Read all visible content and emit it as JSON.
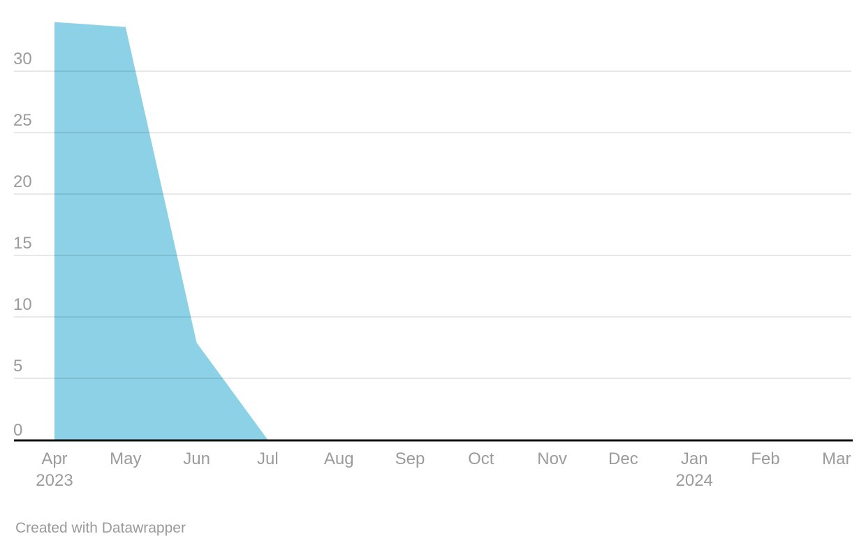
{
  "chart_data": {
    "type": "area",
    "categories": [
      "Apr",
      "May",
      "Jun",
      "Jul",
      "Aug",
      "Sep",
      "Oct",
      "Nov",
      "Dec",
      "Jan",
      "Feb",
      "Mar"
    ],
    "year_labels": [
      {
        "index": 0,
        "label": "2023"
      },
      {
        "index": 9,
        "label": "2024"
      }
    ],
    "values": [
      34,
      33.6,
      7.9,
      0,
      0,
      0,
      0,
      0,
      0,
      0,
      0,
      0
    ],
    "y_ticks": [
      0,
      5,
      10,
      15,
      20,
      25,
      30
    ],
    "ylim": [
      0,
      34
    ],
    "xlabel": "",
    "ylabel": "",
    "grid": "horizontal",
    "legend": "none",
    "series": [
      {
        "name": "value",
        "color": "#8CD1E6"
      }
    ]
  },
  "colors": {
    "area_fill": "#8CD1E6",
    "gridline": "rgba(0,0,0,0.09)",
    "axis_line": "#111111",
    "tick_label": "#9B9B9B",
    "footer_text": "#9A9A9A",
    "background": "#FFFFFF"
  },
  "footer": {
    "attribution": "Created with Datawrapper"
  }
}
